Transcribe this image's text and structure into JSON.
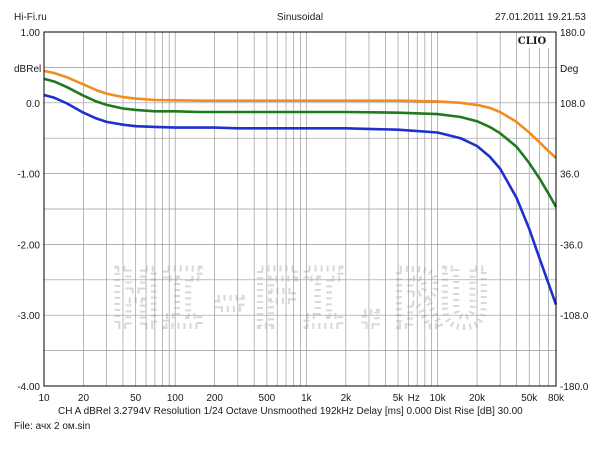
{
  "header": {
    "left": "Hi-Fi.ru",
    "center": "Sinusoidal",
    "right": "27.01.2011 19.21.53"
  },
  "watermark": "HI-FI.RU",
  "brand_label": "CLIO",
  "footer": {
    "line1": "CH A   dBRel 3.2794V   Resolution 1/24 Octave   Unsmoothed   192kHz   Delay [ms] 0.000   Dist Rise [dB] 30.00",
    "line2": "File: ачх 2 ом.sin"
  },
  "chart_data": {
    "type": "line",
    "x_scale": "log",
    "xlim": [
      10,
      80000
    ],
    "ylim": [
      -4.0,
      1.0
    ],
    "y2lim": [
      -180.0,
      180.0
    ],
    "ylabel": "dBRel",
    "y2label": "Deg",
    "x_ticks": [
      {
        "value": 10,
        "label": "10"
      },
      {
        "value": 20,
        "label": "20"
      },
      {
        "value": 50,
        "label": "50"
      },
      {
        "value": 100,
        "label": "100"
      },
      {
        "value": 200,
        "label": "200"
      },
      {
        "value": 500,
        "label": "500"
      },
      {
        "value": 1000,
        "label": "1k"
      },
      {
        "value": 2000,
        "label": "2k"
      },
      {
        "value": 5000,
        "label": "5k"
      },
      {
        "value": 10000,
        "label": "10k"
      },
      {
        "value": 20000,
        "label": "20k"
      },
      {
        "value": 50000,
        "label": "50k"
      },
      {
        "value": 80000,
        "label": "80k"
      }
    ],
    "x_unit_label": "Hz",
    "y_ticks": [
      "1.00",
      "0.0",
      "-1.00",
      "-2.00",
      "-3.00",
      "-4.00"
    ],
    "y_tick_values": [
      1,
      0,
      -1,
      -2,
      -3,
      -4
    ],
    "y2_ticks": [
      "180.0",
      "108.0",
      "36.0",
      "-36.0",
      "-108.0",
      "-180.0"
    ],
    "grid": true,
    "colors": {
      "background": "#ffffff",
      "grid": "#9a9a9a",
      "frame": "#000000",
      "watermark": "#d9d9d9"
    },
    "series": [
      {
        "color": "#f28c1e",
        "x": [
          10,
          12,
          15,
          20,
          25,
          30,
          40,
          50,
          70,
          100,
          150,
          200,
          300,
          500,
          1000,
          2000,
          5000,
          10000,
          15000,
          20000,
          25000,
          30000,
          40000,
          50000,
          60000,
          70000,
          80000
        ],
        "y": [
          0.45,
          0.42,
          0.36,
          0.26,
          0.18,
          0.13,
          0.08,
          0.06,
          0.04,
          0.035,
          0.03,
          0.03,
          0.03,
          0.03,
          0.03,
          0.03,
          0.03,
          0.02,
          0.0,
          -0.03,
          -0.07,
          -0.13,
          -0.27,
          -0.42,
          -0.56,
          -0.68,
          -0.78
        ]
      },
      {
        "color": "#1f7a1f",
        "x": [
          10,
          12,
          15,
          20,
          25,
          30,
          40,
          50,
          70,
          100,
          150,
          200,
          300,
          500,
          1000,
          2000,
          5000,
          10000,
          15000,
          20000,
          25000,
          30000,
          40000,
          50000,
          60000,
          70000,
          80000
        ],
        "y": [
          0.34,
          0.3,
          0.22,
          0.1,
          0.02,
          -0.03,
          -0.08,
          -0.1,
          -0.12,
          -0.12,
          -0.13,
          -0.13,
          -0.13,
          -0.13,
          -0.13,
          -0.13,
          -0.14,
          -0.16,
          -0.2,
          -0.26,
          -0.34,
          -0.43,
          -0.62,
          -0.85,
          -1.07,
          -1.28,
          -1.47
        ]
      },
      {
        "color": "#1f2fd0",
        "x": [
          10,
          12,
          15,
          20,
          25,
          30,
          40,
          50,
          70,
          100,
          150,
          200,
          300,
          500,
          1000,
          2000,
          5000,
          10000,
          15000,
          20000,
          25000,
          30000,
          40000,
          50000,
          60000,
          70000,
          80000
        ],
        "y": [
          0.11,
          0.07,
          -0.01,
          -0.14,
          -0.22,
          -0.27,
          -0.31,
          -0.33,
          -0.34,
          -0.35,
          -0.35,
          -0.35,
          -0.36,
          -0.36,
          -0.36,
          -0.36,
          -0.38,
          -0.42,
          -0.5,
          -0.61,
          -0.76,
          -0.93,
          -1.34,
          -1.78,
          -2.2,
          -2.55,
          -2.85
        ]
      }
    ]
  }
}
